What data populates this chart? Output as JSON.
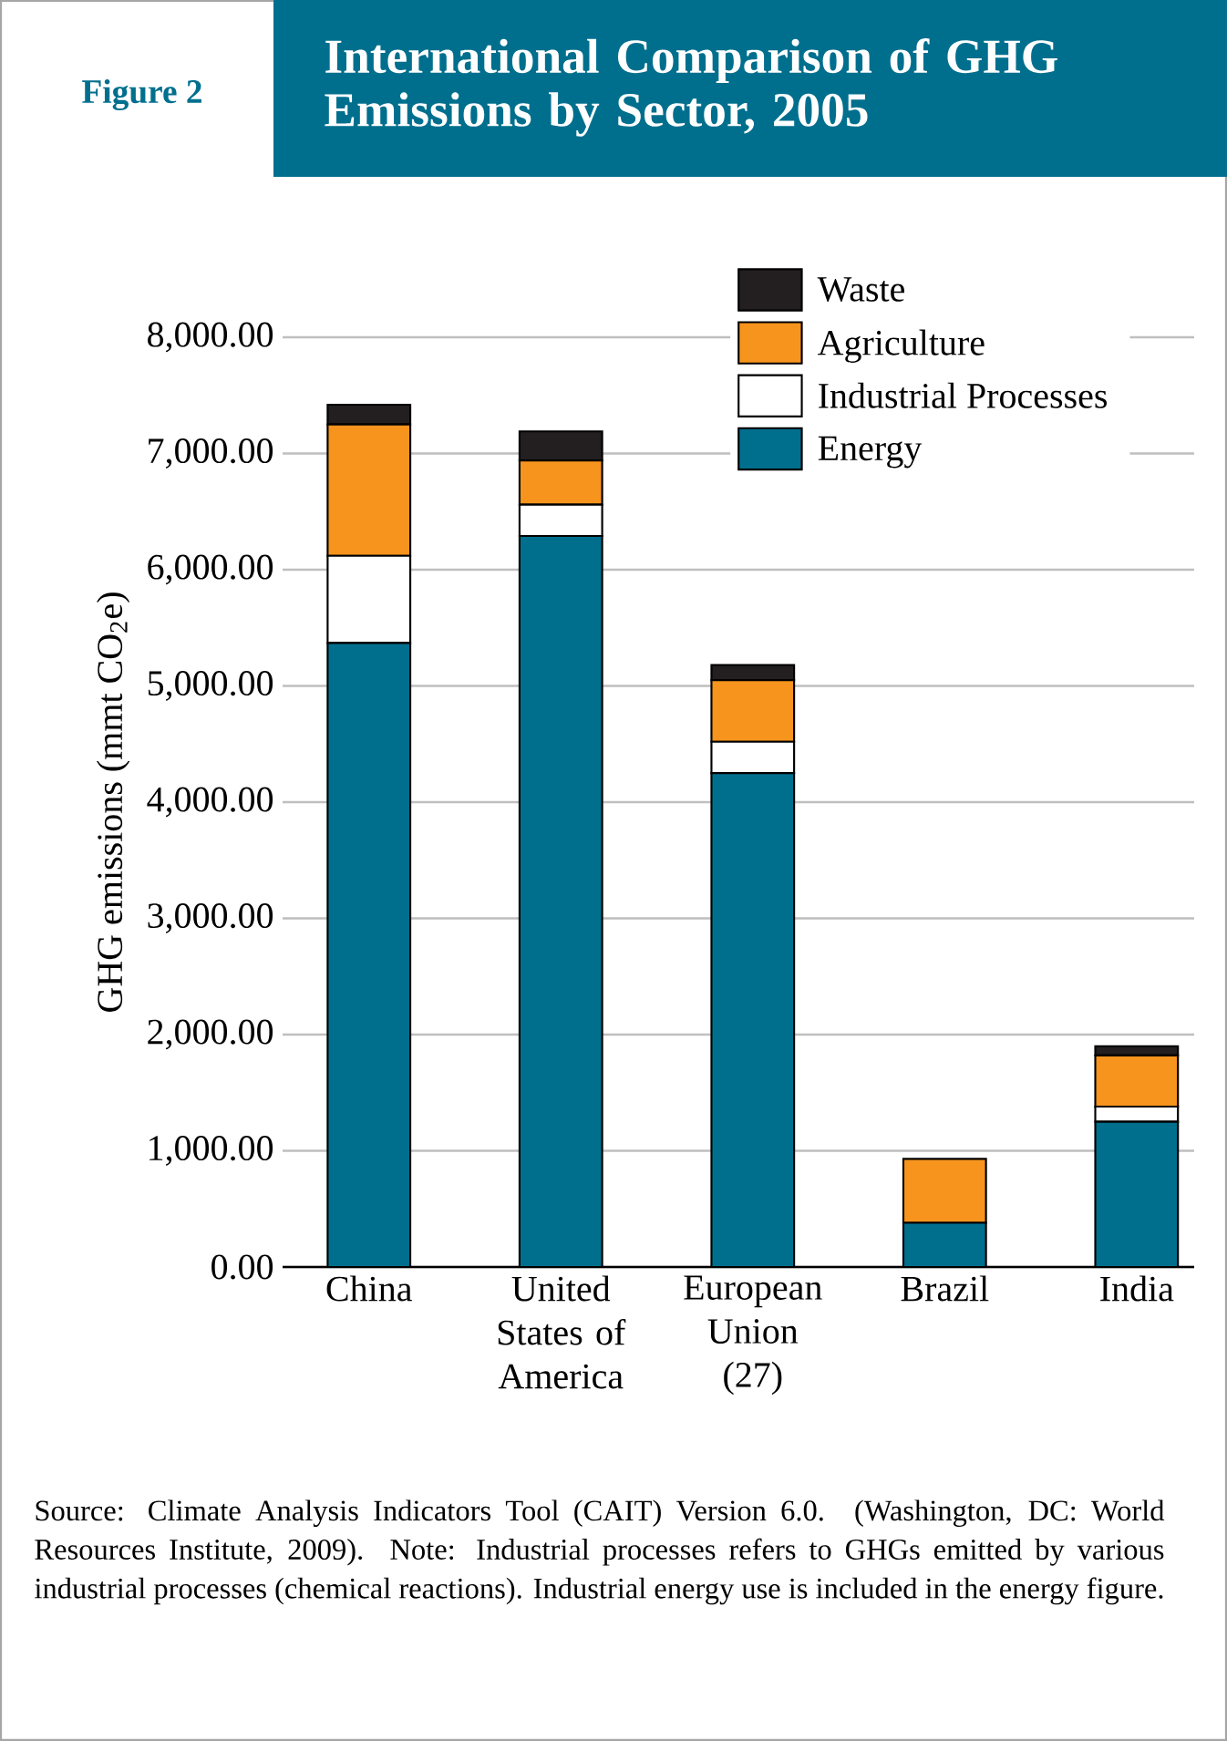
{
  "chart_data": {
    "type": "bar",
    "stacked": true,
    "title": "International Comparison of GHG Emissions by Sector, 2005",
    "ylabel": "GHG emissions (mmt CO$_{2}$e)",
    "categories": [
      "China",
      "United States of America",
      "European Union (27)",
      "Brazil",
      "India"
    ],
    "series": [
      {
        "name": "Energy",
        "color": "#006f8e",
        "values": [
          5370,
          6290,
          4250,
          380,
          1250
        ]
      },
      {
        "name": "Industrial Processes",
        "color": "#ffffff",
        "values": [
          750,
          270,
          270,
          0,
          130
        ]
      },
      {
        "name": "Agriculture",
        "color": "#f7941d",
        "values": [
          1130,
          380,
          530,
          550,
          440
        ]
      },
      {
        "name": "Waste",
        "color": "#231f20",
        "values": [
          170,
          250,
          130,
          0,
          80
        ]
      }
    ],
    "ylim": [
      0,
      8000
    ],
    "yticks": [
      {
        "value": 0,
        "label": "0.00"
      },
      {
        "value": 1000,
        "label": "1,000.00"
      },
      {
        "value": 2000,
        "label": "2,000.00"
      },
      {
        "value": 3000,
        "label": "3,000.00"
      },
      {
        "value": 4000,
        "label": "4,000.00"
      },
      {
        "value": 5000,
        "label": "5,000.00"
      },
      {
        "value": 6000,
        "label": "6,000.00"
      },
      {
        "value": 7000,
        "label": "7,000.00"
      },
      {
        "value": 8000,
        "label": "8,000.00"
      }
    ],
    "grid": "y",
    "legend": "top right",
    "annotations": [
      "Figure 2",
      "Source: Climate Analysis Indicators Tool (CAIT) Version 6.0. (Washington, DC: World Resources Institute, 2009). Note: Industrial processes refers to GHGs emitted by various industrial processes (chemical reactions). Industrial energy use is included in the energy figure."
    ]
  }
}
